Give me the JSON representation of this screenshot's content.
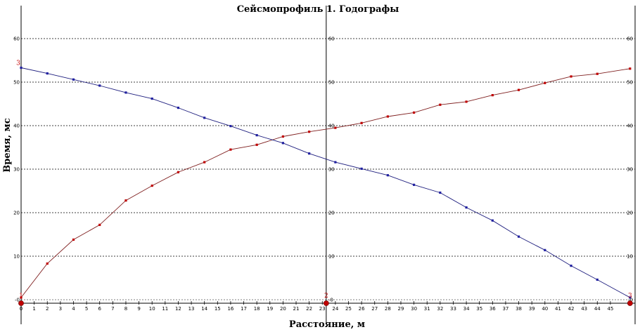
{
  "chart_data": {
    "type": "line",
    "title": "Сейсмопрофиль 1. Годографы",
    "xlabel": "Расстояние, м",
    "ylabel": "Время, мс",
    "xlim": [
      0,
      47
    ],
    "ylim": [
      -1,
      68
    ],
    "x_ticks": [
      0,
      1,
      2,
      3,
      4,
      5,
      6,
      7,
      8,
      9,
      10,
      11,
      12,
      13,
      14,
      15,
      16,
      17,
      18,
      19,
      20,
      21,
      22,
      23,
      24,
      25,
      26,
      27,
      28,
      29,
      30,
      31,
      32,
      33,
      34,
      35,
      36,
      37,
      38,
      39,
      40,
      41,
      42,
      43,
      44,
      45
    ],
    "y_ticks": [
      10,
      20,
      30,
      40,
      50,
      60
    ],
    "y_zero_label": "-0",
    "grid": "horizontal-dashed",
    "shot_points": [
      {
        "label": "1",
        "x": 0,
        "color": "#c00000"
      },
      {
        "label": "2",
        "x": 23.3,
        "color": "#c00000"
      },
      {
        "label": "3",
        "x": 46.5,
        "color": "#c00000"
      }
    ],
    "annotations": [
      {
        "label": "3",
        "x": 0,
        "y": 53.3,
        "color": "#c00000"
      }
    ],
    "series": [
      {
        "color": "#7f1f1f",
        "marker_color": "#c00000",
        "x": [
          0,
          2,
          4,
          6,
          8,
          10,
          12,
          14,
          16,
          18,
          20,
          22,
          24,
          26,
          28,
          30,
          32,
          34,
          36,
          38,
          40,
          42,
          44,
          46.5
        ],
        "values": [
          0.5,
          8.3,
          13.8,
          17.2,
          22.8,
          26.2,
          29.3,
          31.6,
          34.5,
          35.6,
          37.5,
          38.6,
          39.5,
          40.6,
          42.1,
          43.0,
          44.8,
          45.5,
          47.0,
          48.2,
          49.8,
          51.3,
          51.9,
          53.1
        ]
      },
      {
        "color": "#1f1f7f",
        "marker_color": "#2020a0",
        "x": [
          0,
          2,
          4,
          6,
          8,
          10,
          12,
          14,
          16,
          18,
          20,
          22,
          24,
          26,
          28,
          30,
          32,
          34,
          36,
          38,
          40,
          42,
          44,
          46.5
        ],
        "values": [
          53.3,
          52.0,
          50.6,
          49.2,
          47.6,
          46.2,
          44.1,
          41.8,
          39.9,
          37.8,
          36.0,
          33.6,
          31.6,
          30.1,
          28.6,
          26.4,
          24.6,
          21.2,
          18.2,
          14.5,
          11.4,
          7.8,
          4.6,
          0.5
        ]
      }
    ]
  }
}
